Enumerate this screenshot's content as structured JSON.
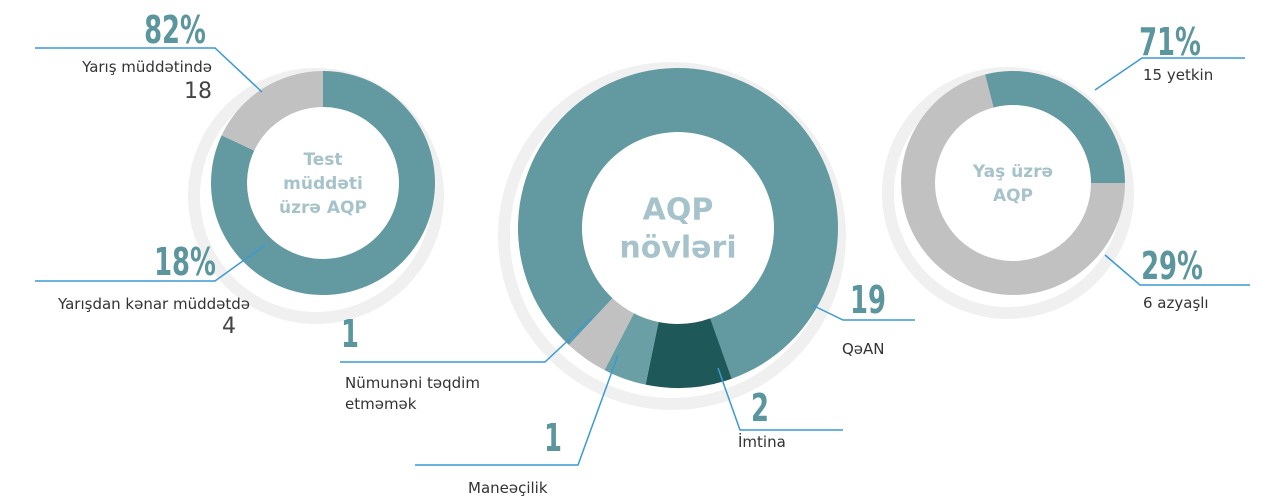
{
  "chart_data": [
    {
      "type": "pie",
      "center_label": [
        "Test",
        "müddəti",
        "üzrə AQP"
      ],
      "categories": [
        "Yarış müddətində",
        "Yarışdan kənar müddətdə"
      ],
      "values": [
        82,
        18
      ],
      "value_labels": [
        "82%",
        "18%"
      ],
      "counts": [
        18,
        4
      ],
      "colors": [
        "#6399a0",
        "#c1c1c1"
      ]
    },
    {
      "type": "pie",
      "center_label": [
        "AQP",
        "növləri"
      ],
      "categories": [
        "QəAN",
        "İmtina",
        "Maneəçilik",
        "Nümunəni təqdim etməmək"
      ],
      "values": [
        19,
        2,
        1,
        1
      ],
      "colors": [
        "#6399a0",
        "#1f5858",
        "#6a9fa6",
        "#c1c1c1"
      ]
    },
    {
      "type": "pie",
      "center_label": [
        "Yaş üzrə",
        "AQP"
      ],
      "categories": [
        "15 yetkin",
        "6 azyaşlı"
      ],
      "values": [
        71,
        29
      ],
      "value_labels": [
        "71%",
        "29%"
      ],
      "colors": [
        "#c1c1c1",
        "#6399a0"
      ]
    }
  ]
}
